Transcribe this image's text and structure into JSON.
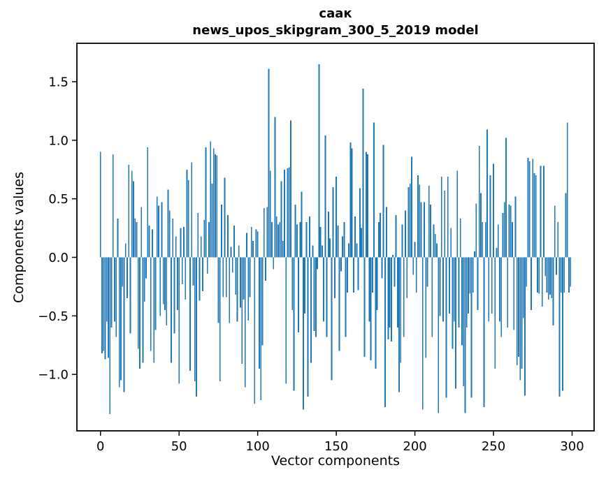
{
  "title": {
    "line1": "саак",
    "line2": "news_upos_skipgram_300_5_2019 model"
  },
  "axes": {
    "xlabel": "Vector components",
    "ylabel": "Components values",
    "x_ticks": [
      0,
      50,
      100,
      150,
      200,
      250,
      300
    ],
    "x_tick_labels": [
      "0",
      "50",
      "100",
      "150",
      "200",
      "250",
      "300"
    ],
    "y_ticks": [
      1.5,
      1.0,
      0.5,
      0.0,
      -0.5,
      -1.0
    ],
    "y_tick_labels": [
      "1.5",
      "1.0",
      "0.5",
      "0.0",
      "−0.5",
      "−1.0"
    ]
  },
  "chart_data": {
    "type": "bar",
    "title": "саак — news_upos_skipgram_300_5_2019 model",
    "xlabel": "Vector components",
    "ylabel": "Components values",
    "x_start": 0,
    "n_bars": 300,
    "bar_color": "#1f77b4",
    "bar_width_units": 0.8,
    "xlim": [
      -15.0,
      314.0
    ],
    "ylim": [
      -1.482,
      1.828
    ],
    "grid": false,
    "legend": false,
    "values": [
      0.9,
      -0.82,
      -0.8,
      -0.87,
      -0.55,
      -0.86,
      -1.34,
      -0.6,
      0.88,
      -0.55,
      -0.68,
      0.33,
      -1.11,
      -1.05,
      -0.25,
      -1.15,
      0.12,
      -0.35,
      0.79,
      -0.65,
      0.74,
      0.65,
      0.33,
      0.3,
      -0.78,
      -0.95,
      0.43,
      -0.9,
      -0.38,
      -0.18,
      0.94,
      0.27,
      -0.8,
      0.24,
      -0.9,
      -0.62,
      0.52,
      0.44,
      -0.5,
      0.47,
      -0.4,
      -0.45,
      -0.58,
      0.58,
      0.4,
      -0.9,
      0.33,
      -0.65,
      0.18,
      -0.45,
      -1.08,
      0.25,
      -0.23,
      0.26,
      -0.36,
      0.75,
      0.66,
      -0.97,
      0.81,
      -0.24,
      -1.06,
      -1.19,
      0.38,
      -0.37,
      0.18,
      -0.29,
      0.32,
      0.94,
      -0.14,
      0.3,
      0.99,
      0.63,
      0.93,
      0.88,
      0.87,
      -0.56,
      -1.06,
      0.45,
      -0.34,
      0.68,
      -0.34,
      0.36,
      -0.56,
      0.09,
      -0.13,
      0.27,
      -0.32,
      -0.55,
      0.1,
      -0.43,
      -0.91,
      -0.36,
      -1.11,
      0.21,
      -0.54,
      -0.34,
      0.26,
      0.14,
      -1.25,
      0.24,
      0.22,
      -0.95,
      -1.22,
      -0.75,
      0.42,
      -0.2,
      0.43,
      1.61,
      0.74,
      0.3,
      -0.1,
      1.2,
      0.35,
      0.28,
      0.3,
      0.65,
      0.14,
      0.75,
      -1.08,
      0.76,
      0.77,
      1.17,
      -0.45,
      -1.14,
      0.45,
      0.28,
      -0.64,
      0.3,
      0.56,
      -1.3,
      -0.48,
      0.3,
      -1.19,
      0.35,
      -0.9,
      0.1,
      -0.63,
      -0.68,
      -0.1,
      1.65,
      0.26,
      0.1,
      -0.55,
      1.04,
      -0.68,
      0.39,
      0.16,
      -1.05,
      0.6,
      -0.35,
      0.69,
      0.27,
      -0.8,
      -0.12,
      0.18,
      0.3,
      -0.68,
      -0.3,
      0.12,
      0.98,
      0.93,
      -0.3,
      0.35,
      0.12,
      -0.28,
      0.59,
      0.25,
      1.44,
      -0.85,
      0.9,
      0.88,
      -0.55,
      -0.88,
      -0.3,
      1.15,
      -0.95,
      -0.45,
      0.3,
      0.38,
      -0.18,
      0.96,
      -1.28,
      0.43,
      -0.7,
      -0.6,
      -0.72,
      0.02,
      -0.25,
      0.36,
      -0.6,
      -1.15,
      -0.9,
      0.28,
      -0.68,
      0.4,
      -0.35,
      0.6,
      0.63,
      0.86,
      -0.15,
      0.13,
      -0.3,
      0.7,
      0.62,
      0.47,
      -1.3,
      0.47,
      -0.86,
      -0.25,
      0.61,
      0.45,
      -0.68,
      0.28,
      0.2,
      0.12,
      -1.33,
      -0.5,
      0.69,
      -0.55,
      0.57,
      -1.2,
      0.69,
      -0.48,
      0.25,
      -0.78,
      -0.55,
      -1.12,
      0.74,
      -0.6,
      0.33,
      -0.75,
      -1.1,
      -1.33,
      -0.6,
      -0.48,
      -0.31,
      -1.2,
      -0.3,
      0.05,
      0.46,
      -0.45,
      0.95,
      0.55,
      0.3,
      -1.28,
      0.3,
      1.09,
      -0.55,
      0.7,
      -0.48,
      0.8,
      -0.95,
      0.08,
      0.28,
      -0.55,
      -0.68,
      0.38,
      0.47,
      1.02,
      -0.6,
      0.45,
      0.44,
      0.3,
      -0.62,
      0.52,
      -0.92,
      -0.85,
      -1.05,
      -0.95,
      -0.52,
      -1.18,
      -0.25,
      0.85,
      0.82,
      -0.45,
      0.84,
      0.72,
      0.7,
      -0.3,
      -0.31,
      0.78,
      -0.42,
      0.78,
      -0.16,
      -0.3,
      -0.36,
      -0.32,
      -0.35,
      -0.58,
      0.44,
      -0.15,
      0.3,
      -1.19,
      -0.3,
      -1.14,
      -0.3,
      0.55,
      1.15,
      -0.3,
      -0.25
    ]
  },
  "style": {
    "spine_color": "#000000",
    "background": "#ffffff",
    "tick_color": "#000000"
  }
}
